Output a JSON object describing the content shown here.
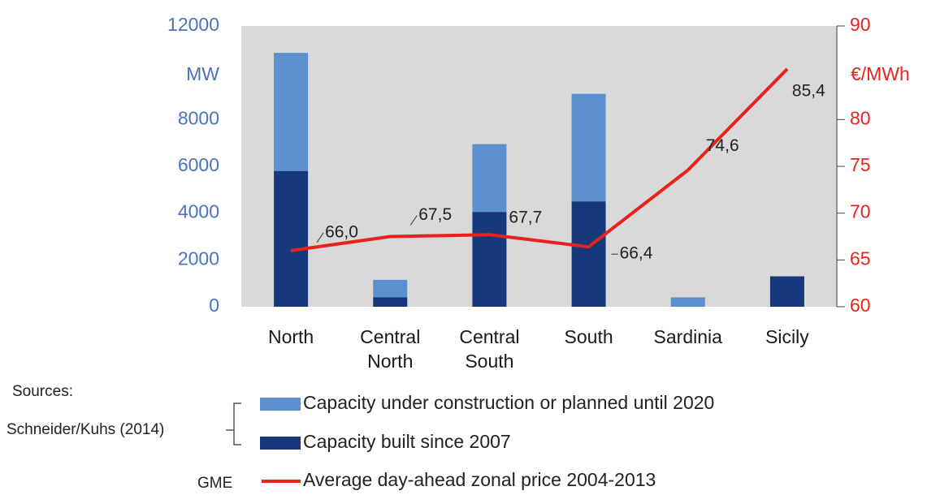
{
  "chart_data": {
    "type": "bar",
    "categories": [
      "North",
      "Central North",
      "Central South",
      "South",
      "Sardinia",
      "Sicily"
    ],
    "ylabel": "MW",
    "y2label": "€/MWh",
    "ylim": [
      0,
      12000
    ],
    "yticks": [
      0,
      2000,
      4000,
      6000,
      8000,
      12000
    ],
    "y2lim": [
      60,
      90
    ],
    "y2ticks": [
      60,
      65,
      70,
      75,
      80,
      90
    ],
    "series": [
      {
        "name": "Capacity under construction or planned until 2020",
        "color": "#5b8fd0",
        "stack_order": 2,
        "values": [
          5050,
          750,
          2900,
          4600,
          400,
          0
        ]
      },
      {
        "name": "Capacity built since 2007",
        "color": "#17387a",
        "stack_order": 1,
        "values": [
          5800,
          400,
          4050,
          4500,
          0,
          1300
        ]
      },
      {
        "name": "Average day-ahead zonal price 2004-2013",
        "color": "#e8231e",
        "type": "line",
        "axis": "y2",
        "values": [
          66.0,
          67.5,
          67.7,
          66.4,
          74.6,
          85.4
        ],
        "value_labels": [
          "66,0",
          "67,5",
          "67,7",
          "66,4",
          "74,6",
          "85,4"
        ]
      }
    ],
    "sources": {
      "heading": "Sources:",
      "capacity": "Schneider/Kuhs (2014)",
      "price": "GME"
    }
  }
}
